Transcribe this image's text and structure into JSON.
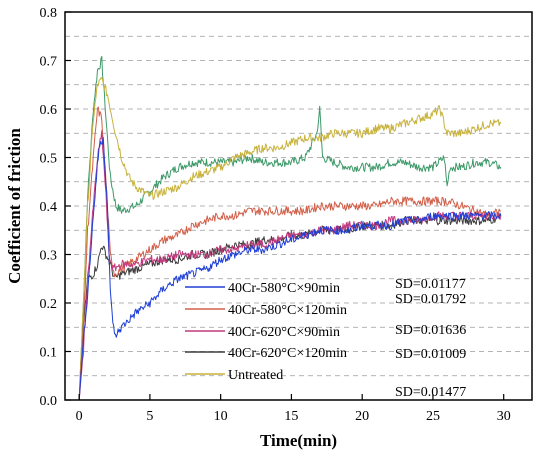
{
  "chart_data": {
    "type": "line",
    "xlabel": "Time(min)",
    "ylabel": "Coefficient of friction",
    "xlim": [
      -1,
      32
    ],
    "ylim": [
      0.0,
      0.8
    ],
    "xticks": [
      "0",
      "5",
      "10",
      "15",
      "20",
      "25",
      "30"
    ],
    "yticks": [
      "0.0",
      "0.1",
      "0.2",
      "0.3",
      "0.4",
      "0.5",
      "0.6",
      "0.7",
      "0.8"
    ],
    "grid": "horizontal-dashed",
    "legend_position": "lower-center",
    "series": [
      {
        "name": "40Cr-580°C×90min",
        "sd": "SD=0.01177",
        "color": "#1f3fd6",
        "points": [
          [
            0,
            0.0
          ],
          [
            0.3,
            0.12
          ],
          [
            0.6,
            0.22
          ],
          [
            1.0,
            0.38
          ],
          [
            1.4,
            0.52
          ],
          [
            1.7,
            0.54
          ],
          [
            2.0,
            0.4
          ],
          [
            2.2,
            0.22
          ],
          [
            2.5,
            0.13
          ],
          [
            3,
            0.15
          ],
          [
            4,
            0.18
          ],
          [
            5,
            0.2
          ],
          [
            6,
            0.23
          ],
          [
            7,
            0.25
          ],
          [
            8,
            0.26
          ],
          [
            9,
            0.27
          ],
          [
            10,
            0.29
          ],
          [
            11,
            0.3
          ],
          [
            12,
            0.31
          ],
          [
            13,
            0.31
          ],
          [
            14,
            0.32
          ],
          [
            15,
            0.33
          ],
          [
            16,
            0.34
          ],
          [
            17,
            0.35
          ],
          [
            18,
            0.35
          ],
          [
            19,
            0.35
          ],
          [
            20,
            0.36
          ],
          [
            21,
            0.36
          ],
          [
            22,
            0.36
          ],
          [
            23,
            0.37
          ],
          [
            24,
            0.37
          ],
          [
            25,
            0.38
          ],
          [
            26,
            0.38
          ],
          [
            27,
            0.38
          ],
          [
            28,
            0.38
          ],
          [
            29,
            0.38
          ],
          [
            29.8,
            0.38
          ]
        ]
      },
      {
        "name": "40Cr-580°C×120min",
        "sd": "SD=0.01792",
        "color": "#d2604a",
        "points": [
          [
            0,
            0.0
          ],
          [
            0.3,
            0.15
          ],
          [
            0.6,
            0.35
          ],
          [
            1.0,
            0.5
          ],
          [
            1.3,
            0.6
          ],
          [
            1.6,
            0.58
          ],
          [
            1.9,
            0.45
          ],
          [
            2.2,
            0.3
          ],
          [
            2.5,
            0.26
          ],
          [
            3,
            0.27
          ],
          [
            4,
            0.29
          ],
          [
            5,
            0.31
          ],
          [
            6,
            0.33
          ],
          [
            7,
            0.34
          ],
          [
            8,
            0.36
          ],
          [
            9,
            0.37
          ],
          [
            10,
            0.38
          ],
          [
            11,
            0.38
          ],
          [
            12,
            0.39
          ],
          [
            13,
            0.39
          ],
          [
            14,
            0.39
          ],
          [
            15,
            0.39
          ],
          [
            16,
            0.39
          ],
          [
            17,
            0.4
          ],
          [
            18,
            0.4
          ],
          [
            19,
            0.4
          ],
          [
            20,
            0.4
          ],
          [
            21,
            0.4
          ],
          [
            22,
            0.41
          ],
          [
            23,
            0.41
          ],
          [
            24,
            0.41
          ],
          [
            25,
            0.41
          ],
          [
            26,
            0.41
          ],
          [
            27,
            0.4
          ],
          [
            28,
            0.39
          ],
          [
            29,
            0.38
          ],
          [
            29.8,
            0.39
          ]
        ]
      },
      {
        "name": "40Cr-620°C×90min",
        "sd": "SD=0.01636",
        "color": "#c23a7e",
        "points": [
          [
            0,
            0.0
          ],
          [
            0.3,
            0.1
          ],
          [
            0.6,
            0.25
          ],
          [
            1.0,
            0.4
          ],
          [
            1.3,
            0.5
          ],
          [
            1.6,
            0.55
          ],
          [
            1.9,
            0.42
          ],
          [
            2.1,
            0.3
          ],
          [
            2.4,
            0.27
          ],
          [
            3,
            0.28
          ],
          [
            4,
            0.28
          ],
          [
            5,
            0.29
          ],
          [
            6,
            0.29
          ],
          [
            7,
            0.3
          ],
          [
            8,
            0.3
          ],
          [
            9,
            0.3
          ],
          [
            10,
            0.31
          ],
          [
            11,
            0.31
          ],
          [
            12,
            0.32
          ],
          [
            13,
            0.32
          ],
          [
            14,
            0.33
          ],
          [
            15,
            0.34
          ],
          [
            16,
            0.34
          ],
          [
            17,
            0.35
          ],
          [
            18,
            0.35
          ],
          [
            19,
            0.36
          ],
          [
            20,
            0.36
          ],
          [
            21,
            0.36
          ],
          [
            22,
            0.37
          ],
          [
            23,
            0.37
          ],
          [
            24,
            0.37
          ],
          [
            25,
            0.38
          ],
          [
            26,
            0.38
          ],
          [
            27,
            0.38
          ],
          [
            28,
            0.38
          ],
          [
            29,
            0.38
          ],
          [
            29.8,
            0.38
          ]
        ]
      },
      {
        "name": "40Cr-620°C×120min",
        "sd": "SD=0.01009",
        "color": "#3d3d3d",
        "points": [
          [
            0,
            0.0
          ],
          [
            0.3,
            0.15
          ],
          [
            0.6,
            0.25
          ],
          [
            1.0,
            0.26
          ],
          [
            1.3,
            0.28
          ],
          [
            1.6,
            0.32
          ],
          [
            1.9,
            0.3
          ],
          [
            2.2,
            0.28
          ],
          [
            2.5,
            0.25
          ],
          [
            3,
            0.26
          ],
          [
            4,
            0.27
          ],
          [
            5,
            0.28
          ],
          [
            6,
            0.29
          ],
          [
            7,
            0.29
          ],
          [
            8,
            0.3
          ],
          [
            9,
            0.3
          ],
          [
            10,
            0.31
          ],
          [
            11,
            0.32
          ],
          [
            12,
            0.32
          ],
          [
            13,
            0.33
          ],
          [
            14,
            0.33
          ],
          [
            15,
            0.34
          ],
          [
            16,
            0.34
          ],
          [
            17,
            0.35
          ],
          [
            18,
            0.35
          ],
          [
            19,
            0.35
          ],
          [
            20,
            0.36
          ],
          [
            21,
            0.36
          ],
          [
            22,
            0.36
          ],
          [
            23,
            0.37
          ],
          [
            24,
            0.37
          ],
          [
            25,
            0.37
          ],
          [
            26,
            0.37
          ],
          [
            27,
            0.37
          ],
          [
            28,
            0.37
          ],
          [
            29,
            0.37
          ],
          [
            29.8,
            0.38
          ]
        ]
      },
      {
        "name": "Untreated",
        "sd": "SD=0.01477",
        "color": "#c8b23c",
        "points": [
          [
            0,
            0.0
          ],
          [
            0.3,
            0.2
          ],
          [
            0.6,
            0.4
          ],
          [
            1.0,
            0.58
          ],
          [
            1.3,
            0.65
          ],
          [
            1.6,
            0.66
          ],
          [
            2.0,
            0.63
          ],
          [
            2.5,
            0.56
          ],
          [
            3,
            0.5
          ],
          [
            3.5,
            0.46
          ],
          [
            4,
            0.44
          ],
          [
            5,
            0.42
          ],
          [
            6,
            0.43
          ],
          [
            7,
            0.44
          ],
          [
            8,
            0.46
          ],
          [
            9,
            0.47
          ],
          [
            10,
            0.48
          ],
          [
            11,
            0.5
          ],
          [
            12,
            0.51
          ],
          [
            13,
            0.52
          ],
          [
            14,
            0.52
          ],
          [
            15,
            0.53
          ],
          [
            16,
            0.54
          ],
          [
            17,
            0.54
          ],
          [
            18,
            0.55
          ],
          [
            19,
            0.55
          ],
          [
            20,
            0.55
          ],
          [
            21,
            0.56
          ],
          [
            22,
            0.56
          ],
          [
            23,
            0.57
          ],
          [
            24,
            0.58
          ],
          [
            25,
            0.59
          ],
          [
            25.5,
            0.6
          ],
          [
            26,
            0.55
          ],
          [
            27,
            0.55
          ],
          [
            28,
            0.56
          ],
          [
            29,
            0.57
          ],
          [
            29.8,
            0.57
          ]
        ]
      },
      {
        "name": "",
        "sd": "",
        "color": "#3f9a6a",
        "points": [
          [
            0,
            0.0
          ],
          [
            0.3,
            0.2
          ],
          [
            0.6,
            0.42
          ],
          [
            1.0,
            0.6
          ],
          [
            1.3,
            0.68
          ],
          [
            1.6,
            0.7
          ],
          [
            1.9,
            0.58
          ],
          [
            2.2,
            0.46
          ],
          [
            2.6,
            0.4
          ],
          [
            3,
            0.39
          ],
          [
            4,
            0.4
          ],
          [
            5,
            0.43
          ],
          [
            6,
            0.46
          ],
          [
            7,
            0.48
          ],
          [
            8,
            0.49
          ],
          [
            9,
            0.49
          ],
          [
            10,
            0.49
          ],
          [
            11,
            0.49
          ],
          [
            12,
            0.5
          ],
          [
            13,
            0.49
          ],
          [
            14,
            0.49
          ],
          [
            15,
            0.49
          ],
          [
            16,
            0.5
          ],
          [
            16.8,
            0.55
          ],
          [
            17.0,
            0.6
          ],
          [
            17.2,
            0.5
          ],
          [
            18,
            0.49
          ],
          [
            19,
            0.48
          ],
          [
            20,
            0.48
          ],
          [
            21,
            0.48
          ],
          [
            22,
            0.49
          ],
          [
            23,
            0.49
          ],
          [
            24,
            0.48
          ],
          [
            25,
            0.48
          ],
          [
            25.8,
            0.5
          ],
          [
            26,
            0.44
          ],
          [
            26.2,
            0.48
          ],
          [
            27,
            0.48
          ],
          [
            28,
            0.49
          ],
          [
            29,
            0.49
          ],
          [
            29.8,
            0.48
          ]
        ]
      }
    ]
  }
}
